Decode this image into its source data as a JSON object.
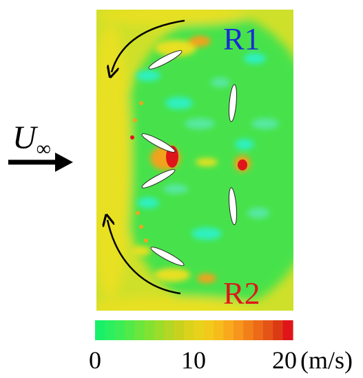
{
  "freestream": {
    "symbol": "U",
    "subscript": "∞"
  },
  "rotors": [
    {
      "label": "R1",
      "color": "#1a2bd6"
    },
    {
      "label": "R2",
      "color": "#e0151a"
    }
  ],
  "colorbar": {
    "min": 0,
    "max": 20,
    "steps": 20,
    "tick_labels": [
      "0",
      "10",
      "20"
    ],
    "unit": "(m/s)",
    "colors": [
      "#19f06a",
      "#2af060",
      "#3ded55",
      "#52ea48",
      "#6ae63c",
      "#82e232",
      "#9cdc2a",
      "#b4d624",
      "#c8d21e",
      "#dbd21c",
      "#e8d21c",
      "#f2ca1c",
      "#f6bc1c",
      "#f8aa1c",
      "#f6961c",
      "#f2801a",
      "#ec6a18",
      "#e45416",
      "#dc3a14",
      "#e0151a"
    ]
  },
  "field_colors": {
    "background": "#47e24c",
    "outer": "#cfe02a",
    "yellow": "#e8e020",
    "orange": "#f2a21c",
    "red": "#e0151a",
    "cyan": "#2ef0c0",
    "mint": "#56e8a0"
  }
}
